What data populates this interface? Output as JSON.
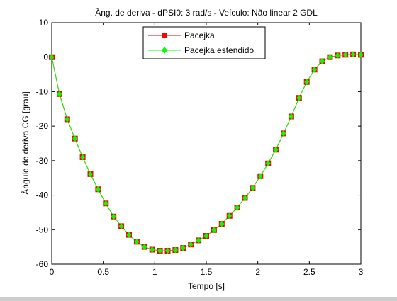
{
  "chart_data": {
    "type": "line",
    "title": "Âng. de deriva - dPSI0: 3 rad/s - Veículo: Não linear 2 GDL",
    "xlabel": "Tempo [s]",
    "ylabel": "Ângulo de deriva CG [grau]",
    "xlim": [
      0,
      3
    ],
    "ylim": [
      -60,
      10
    ],
    "xticks": [
      0,
      0.5,
      1,
      1.5,
      2,
      2.5,
      3
    ],
    "xtick_labels": [
      "0",
      "0.5",
      "1",
      "1.5",
      "2",
      "2.5",
      "3"
    ],
    "yticks": [
      -60,
      -50,
      -40,
      -30,
      -20,
      -10,
      0,
      10
    ],
    "ytick_labels": [
      "-60",
      "-50",
      "-40",
      "-30",
      "-20",
      "-10",
      "0",
      "10"
    ],
    "grid": false,
    "legend_position": "top-center",
    "series": [
      {
        "name": "Pacejka",
        "color": "#ff0000",
        "marker": "square",
        "x": [
          0,
          0.075,
          0.15,
          0.225,
          0.3,
          0.375,
          0.45,
          0.525,
          0.6,
          0.675,
          0.75,
          0.825,
          0.9,
          0.975,
          1.05,
          1.125,
          1.2,
          1.275,
          1.35,
          1.425,
          1.5,
          1.575,
          1.65,
          1.725,
          1.8,
          1.875,
          1.95,
          2.025,
          2.1,
          2.175,
          2.25,
          2.325,
          2.4,
          2.475,
          2.55,
          2.625,
          2.7,
          2.775,
          2.85,
          2.925,
          3.0
        ],
        "y": [
          0,
          -10.7,
          -18.0,
          -23.6,
          -29.0,
          -33.9,
          -38.3,
          -42.4,
          -46.2,
          -49.0,
          -51.5,
          -53.5,
          -55.0,
          -55.8,
          -56.1,
          -56.1,
          -55.9,
          -55.3,
          -54.3,
          -53.1,
          -51.8,
          -50.1,
          -48.3,
          -46.0,
          -43.6,
          -40.8,
          -37.9,
          -34.5,
          -30.8,
          -26.8,
          -22.1,
          -17.2,
          -11.8,
          -7.2,
          -3.6,
          -1.2,
          0.0,
          0.5,
          0.7,
          0.8,
          0.7
        ]
      },
      {
        "name": "Pacejka estendido",
        "color": "#00ff00",
        "marker": "diamond",
        "x": [
          0,
          0.075,
          0.15,
          0.225,
          0.3,
          0.375,
          0.45,
          0.525,
          0.6,
          0.675,
          0.75,
          0.825,
          0.9,
          0.975,
          1.05,
          1.125,
          1.2,
          1.275,
          1.35,
          1.425,
          1.5,
          1.575,
          1.65,
          1.725,
          1.8,
          1.875,
          1.95,
          2.025,
          2.1,
          2.175,
          2.25,
          2.325,
          2.4,
          2.475,
          2.55,
          2.625,
          2.7,
          2.775,
          2.85,
          2.925,
          3.0
        ],
        "y": [
          0,
          -10.7,
          -18.0,
          -23.6,
          -29.0,
          -33.9,
          -38.3,
          -42.4,
          -46.2,
          -49.0,
          -51.5,
          -53.5,
          -55.0,
          -55.8,
          -56.1,
          -56.1,
          -55.9,
          -55.3,
          -54.3,
          -53.1,
          -51.8,
          -50.1,
          -48.3,
          -46.0,
          -43.6,
          -40.8,
          -37.9,
          -34.5,
          -30.8,
          -26.8,
          -22.1,
          -17.2,
          -11.8,
          -7.2,
          -3.6,
          -1.2,
          0.0,
          0.5,
          0.7,
          0.8,
          0.7
        ]
      }
    ]
  }
}
